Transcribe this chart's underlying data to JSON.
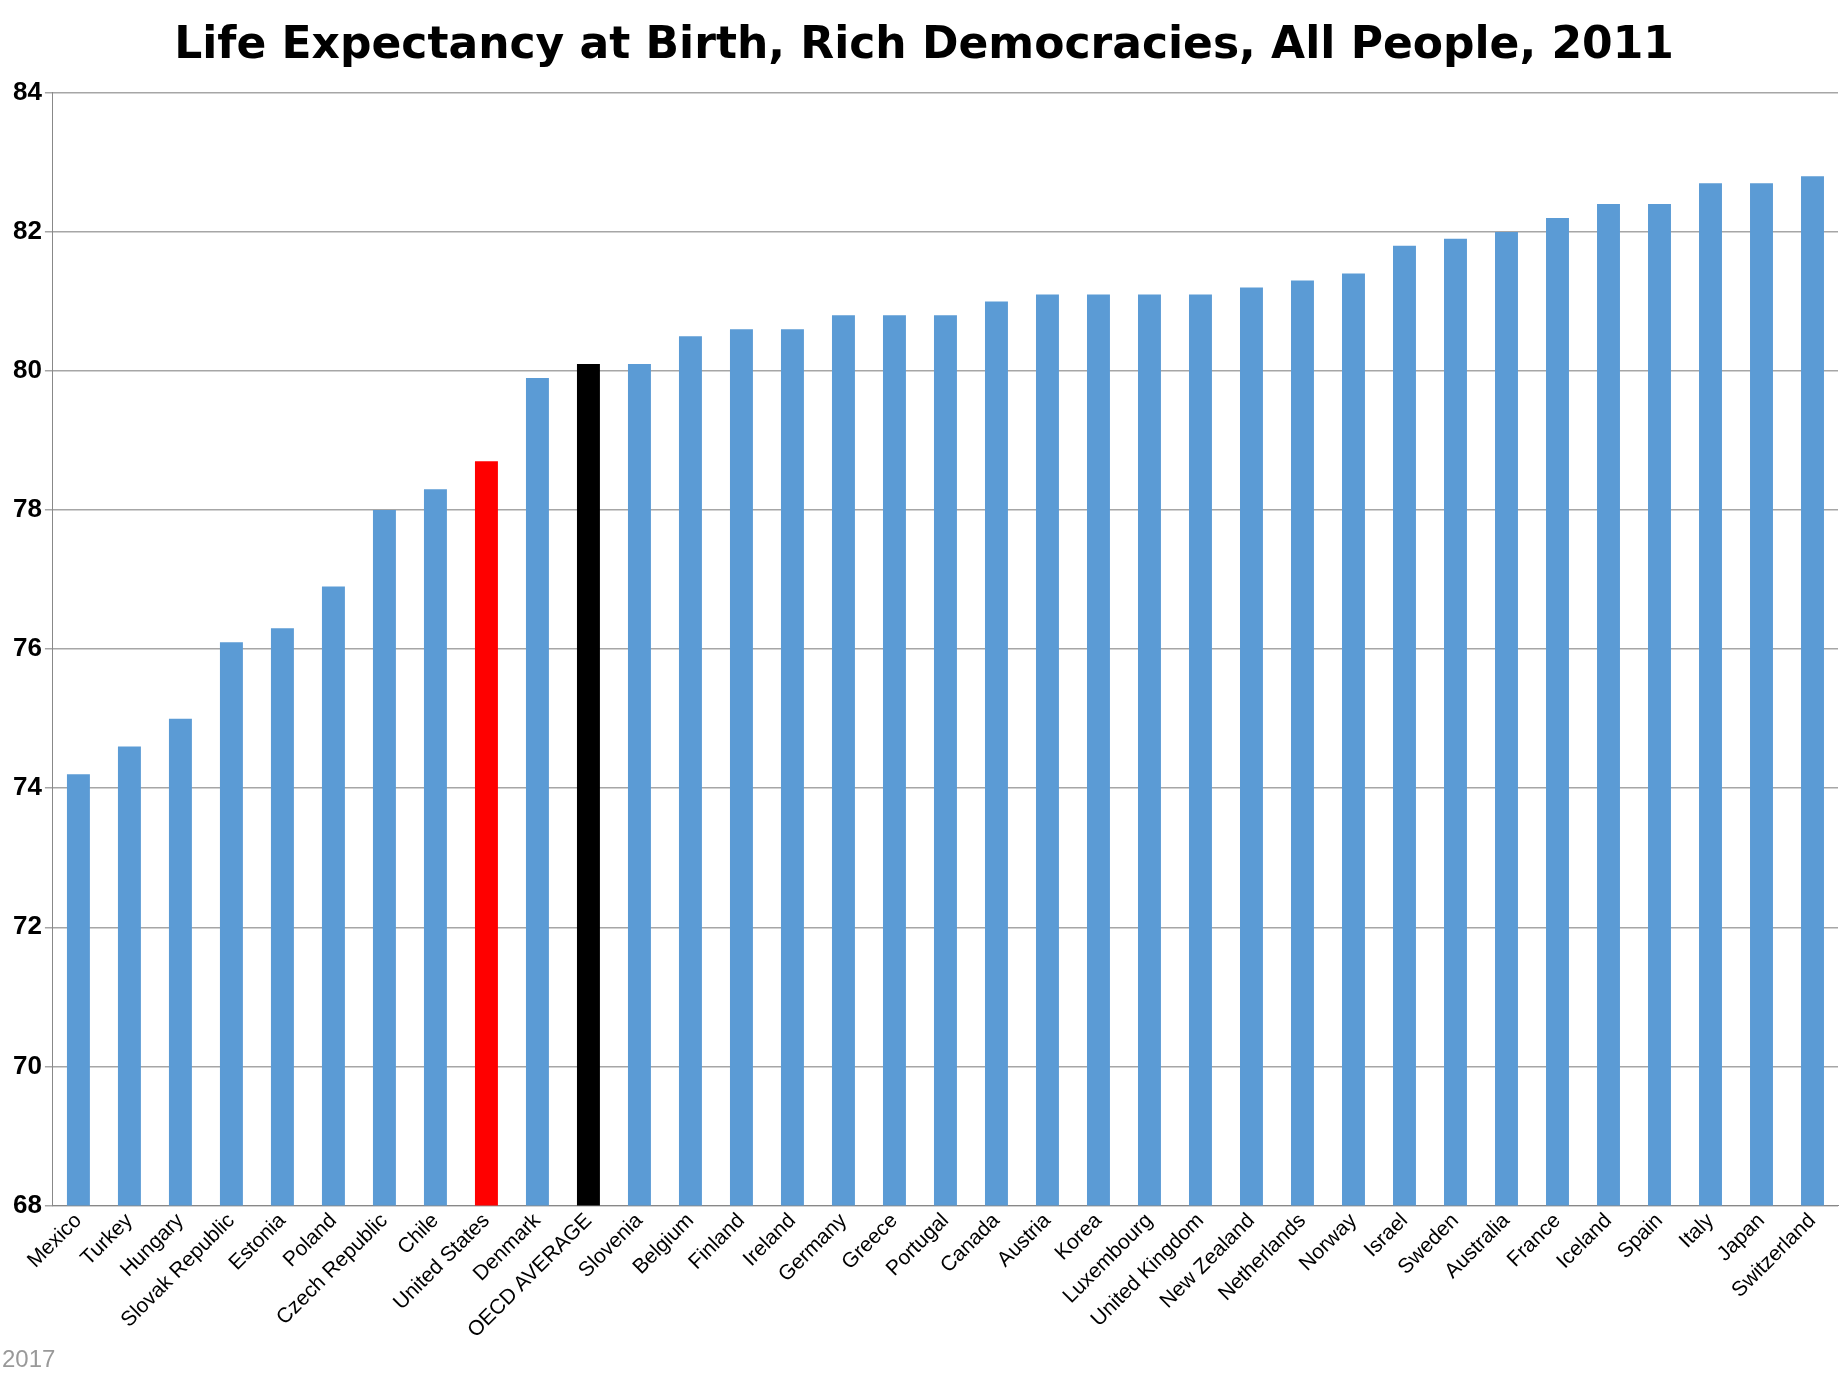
{
  "chart_data": {
    "type": "bar",
    "title": "Life Expectancy at Birth, Rich Democracies, All People, 2011",
    "categories": [
      "Mexico",
      "Turkey",
      "Hungary",
      "Slovak Republic",
      "Estonia",
      "Poland",
      "Czech Republic",
      "Chile",
      "United States",
      "Denmark",
      "OECD AVERAGE",
      "Slovenia",
      "Belgium",
      "Finland",
      "Ireland",
      "Germany",
      "Greece",
      "Portugal",
      "Canada",
      "Austria",
      "Korea",
      "Luxembourg",
      "United Kingdom",
      "New Zealand",
      "Netherlands",
      "Norway",
      "Israel",
      "Sweden",
      "Australia",
      "France",
      "Iceland",
      "Spain",
      "Italy",
      "Japan",
      "Switzerland"
    ],
    "values": [
      74.2,
      74.6,
      75.0,
      76.1,
      76.3,
      76.9,
      78.0,
      78.3,
      78.7,
      79.9,
      80.1,
      80.1,
      80.5,
      80.6,
      80.6,
      80.8,
      80.8,
      80.8,
      81.0,
      81.1,
      81.1,
      81.1,
      81.1,
      81.2,
      81.3,
      81.4,
      81.8,
      81.9,
      82.0,
      82.2,
      82.4,
      82.4,
      82.7,
      82.7,
      82.8
    ],
    "colors": [
      "#5b9bd5",
      "#5b9bd5",
      "#5b9bd5",
      "#5b9bd5",
      "#5b9bd5",
      "#5b9bd5",
      "#5b9bd5",
      "#5b9bd5",
      "#ff0000",
      "#5b9bd5",
      "#000000",
      "#5b9bd5",
      "#5b9bd5",
      "#5b9bd5",
      "#5b9bd5",
      "#5b9bd5",
      "#5b9bd5",
      "#5b9bd5",
      "#5b9bd5",
      "#5b9bd5",
      "#5b9bd5",
      "#5b9bd5",
      "#5b9bd5",
      "#5b9bd5",
      "#5b9bd5",
      "#5b9bd5",
      "#5b9bd5",
      "#5b9bd5",
      "#5b9bd5",
      "#5b9bd5",
      "#5b9bd5",
      "#5b9bd5",
      "#5b9bd5",
      "#5b9bd5",
      "#5b9bd5"
    ],
    "ylim": [
      68,
      84
    ],
    "yticks": [
      68,
      70,
      72,
      74,
      76,
      78,
      80,
      82,
      84
    ],
    "grid": "y",
    "legend": false,
    "annotations": [
      "2017"
    ]
  }
}
